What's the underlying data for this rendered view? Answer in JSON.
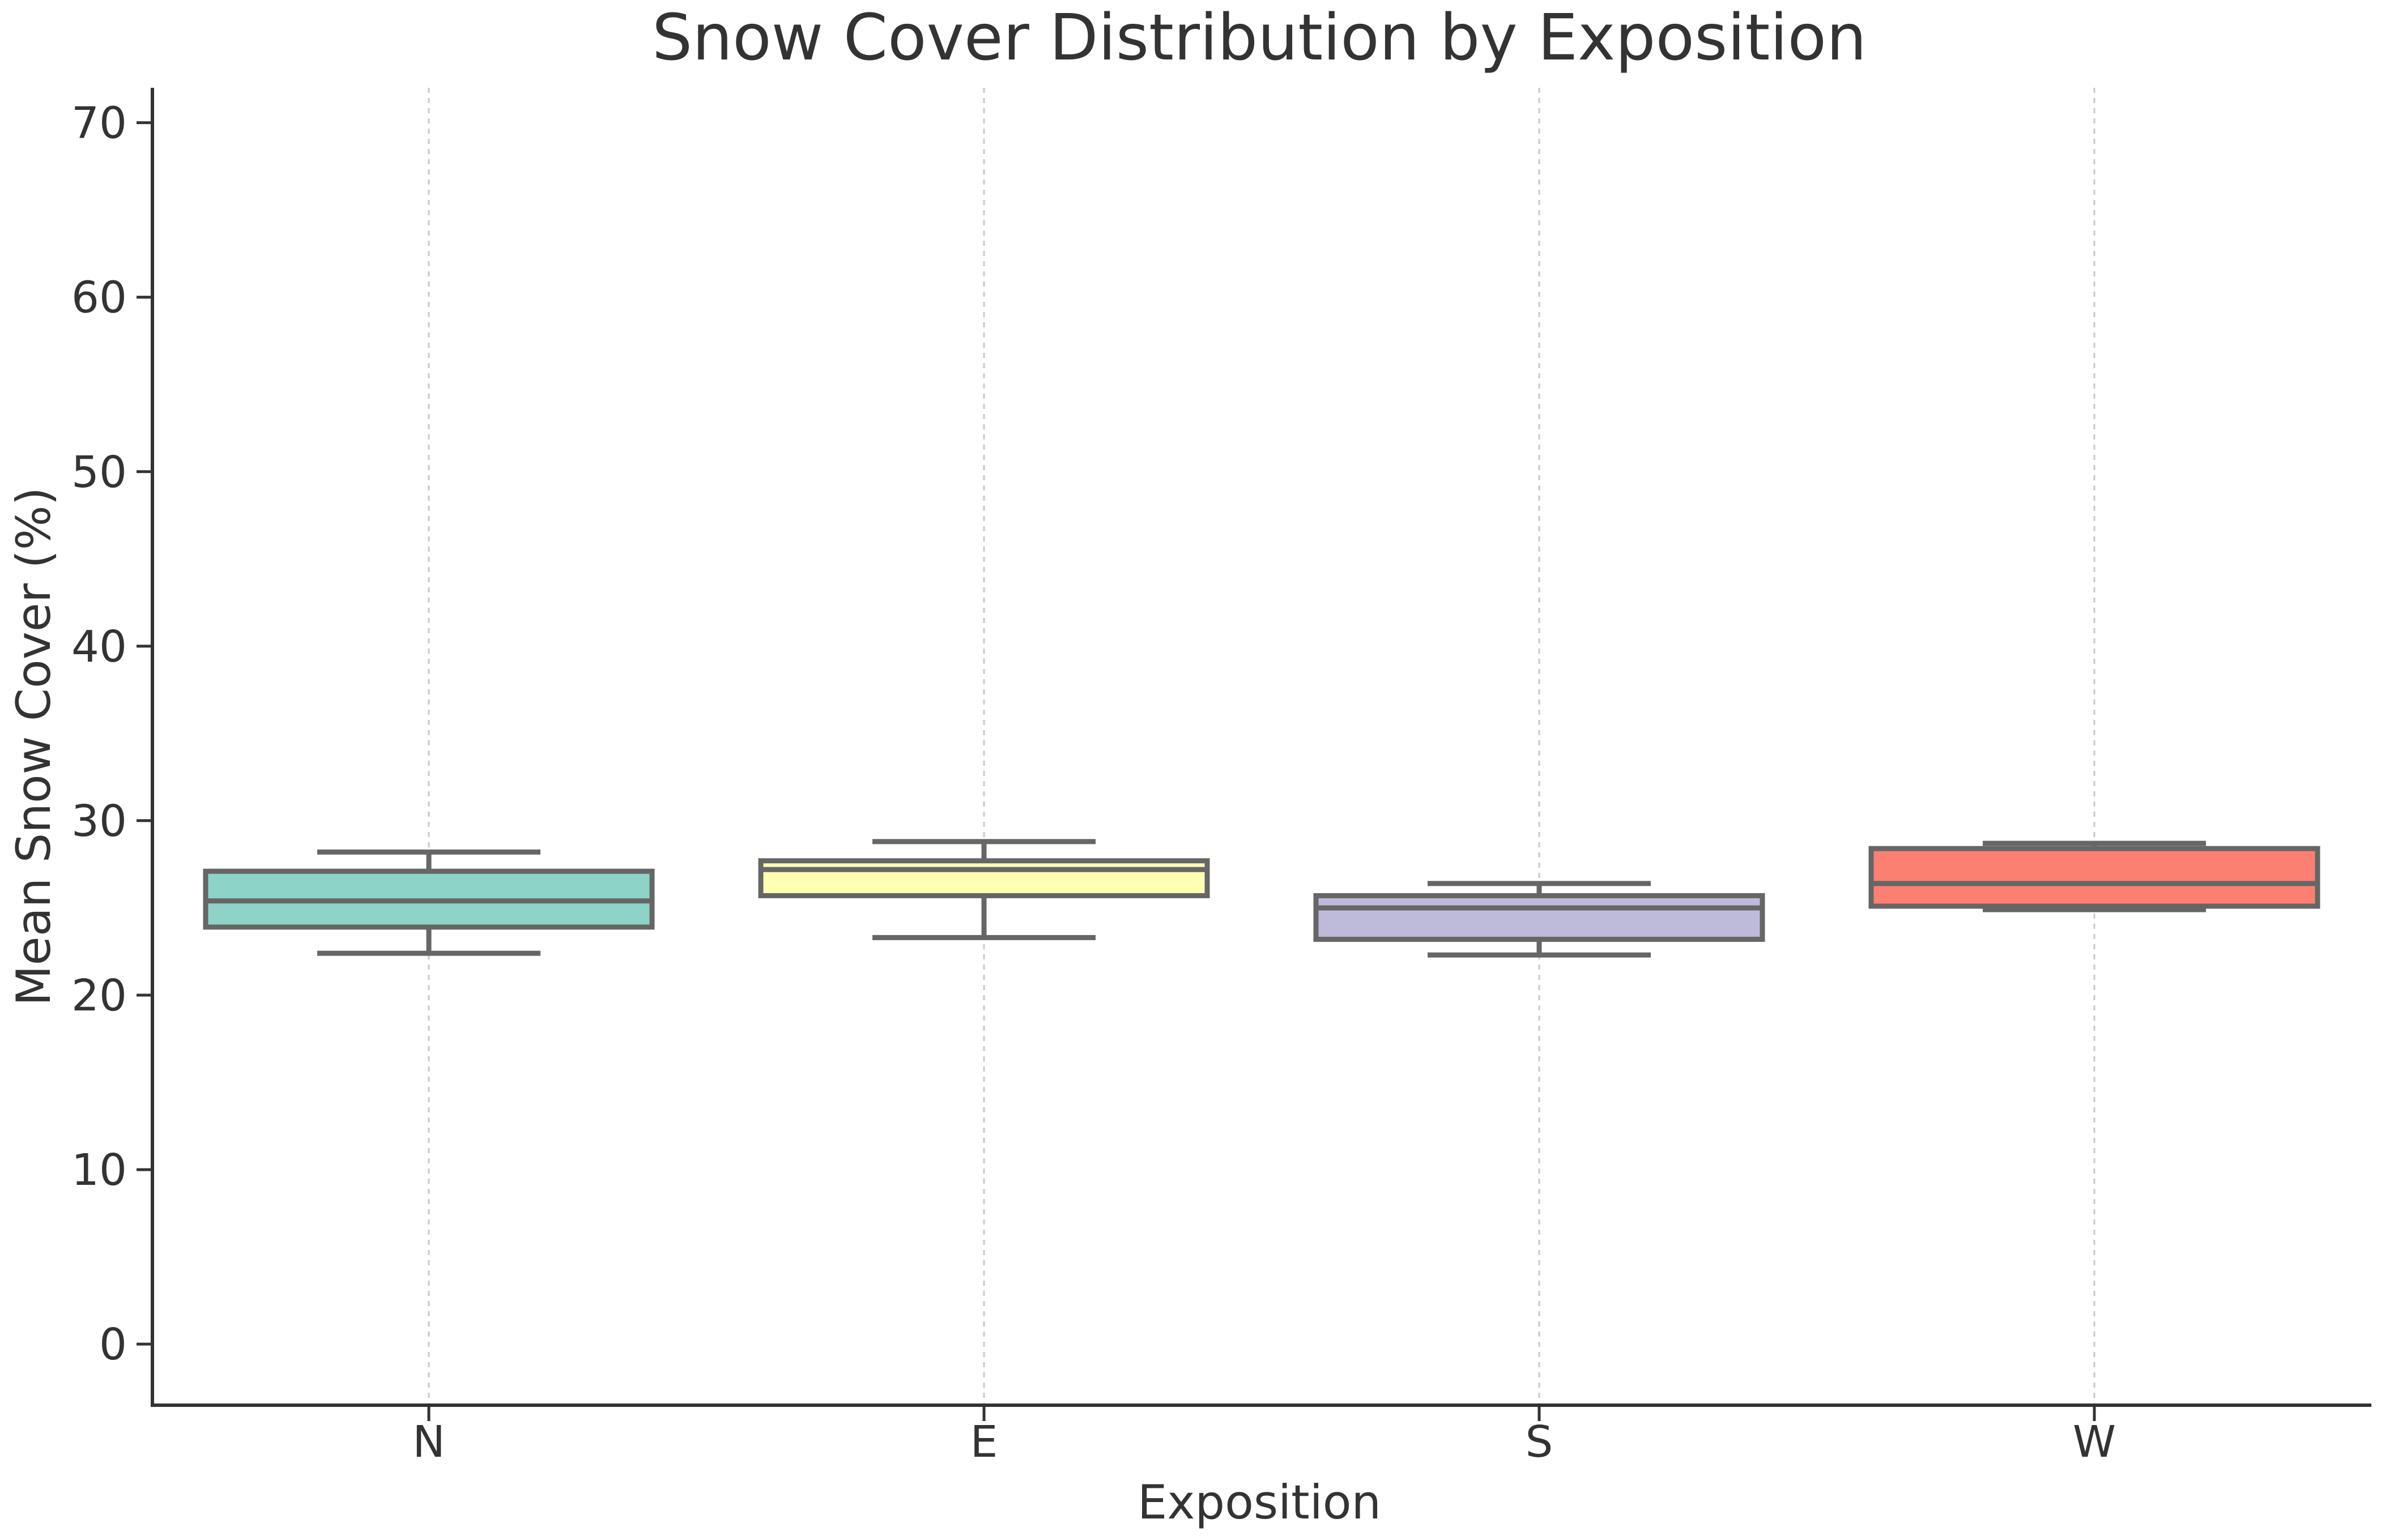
{
  "chart_data": {
    "type": "box",
    "title": "Snow Cover Distribution by Exposition",
    "xlabel": "Exposition",
    "ylabel": "Mean Snow Cover (%)",
    "ylim": [
      -3.5,
      72
    ],
    "yticks": [
      0,
      10,
      20,
      30,
      40,
      50,
      60,
      70
    ],
    "grid": "vertical dashed",
    "categories": [
      "N",
      "E",
      "S",
      "W"
    ],
    "boxes": [
      {
        "category": "N",
        "whisker_low": 22.4,
        "q1": 23.9,
        "median": 25.4,
        "q3": 27.1,
        "whisker_high": 28.2,
        "color": "#8dd3c7"
      },
      {
        "category": "E",
        "whisker_low": 23.3,
        "q1": 25.7,
        "median": 27.2,
        "q3": 27.7,
        "whisker_high": 28.8,
        "color": "#ffffb3"
      },
      {
        "category": "S",
        "whisker_low": 22.3,
        "q1": 23.2,
        "median": 25.0,
        "q3": 25.7,
        "whisker_high": 26.4,
        "color": "#bebada"
      },
      {
        "category": "W",
        "whisker_low": 24.9,
        "q1": 25.1,
        "median": 26.4,
        "q3": 28.4,
        "whisker_high": 28.7,
        "color": "#fb8072"
      }
    ]
  }
}
